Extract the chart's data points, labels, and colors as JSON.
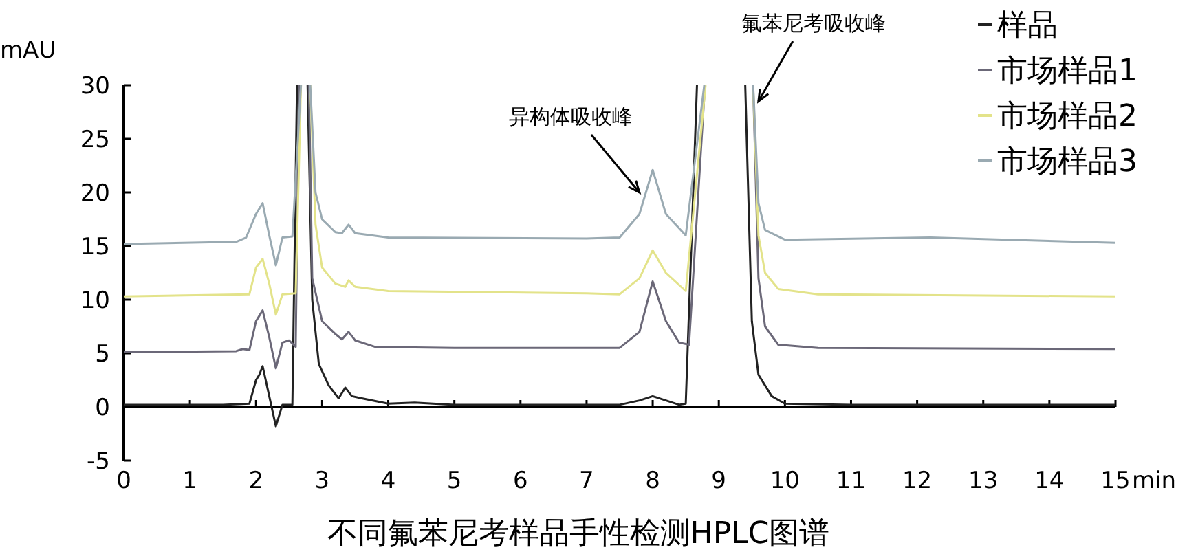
{
  "chart_data": {
    "type": "line",
    "title": "不同氟苯尼考样品手性检测HPLC图谱",
    "xlabel": "min",
    "ylabel": "mAU",
    "xlim": [
      0,
      15
    ],
    "ylim": [
      -5,
      30
    ],
    "xticks": [
      0,
      1,
      2,
      3,
      4,
      5,
      6,
      7,
      8,
      9,
      10,
      11,
      12,
      13,
      14,
      15
    ],
    "yticks": [
      -5,
      0,
      5,
      10,
      15,
      20,
      25,
      30
    ],
    "legend": "top right",
    "grid": false,
    "annotations": [
      {
        "text": "异构体吸收峰",
        "x": 7.8,
        "y": 20
      },
      {
        "text": "氟苯尼考吸收峰",
        "x": 9.6,
        "y": 28.5
      }
    ],
    "series": [
      {
        "name": "样品",
        "color": "#222222",
        "x": [
          0,
          1.5,
          1.9,
          2.0,
          2.05,
          2.1,
          2.2,
          2.3,
          2.4,
          2.55,
          2.62,
          2.7,
          2.78,
          2.85,
          2.95,
          3.1,
          3.25,
          3.35,
          3.45,
          3.6,
          4,
          4.4,
          5,
          7.5,
          7.8,
          8.0,
          8.2,
          8.4,
          8.5,
          8.67,
          9.0,
          9.4,
          9.5,
          9.6,
          9.8,
          10,
          11,
          15
        ],
        "values": [
          0.2,
          0.2,
          0.3,
          2.5,
          3.0,
          3.8,
          1,
          -1.8,
          0.2,
          0.2,
          30,
          null,
          30,
          10,
          4,
          2,
          0.8,
          1.8,
          1,
          0.8,
          0.3,
          0.4,
          0.2,
          0.2,
          0.6,
          1,
          0.6,
          0.2,
          0.3,
          30,
          null,
          30,
          8,
          3,
          1,
          0.3,
          0.2,
          0.2
        ]
      },
      {
        "name": "市场样品1",
        "color": "#6b6878",
        "x": [
          0,
          1.7,
          1.8,
          1.9,
          2.0,
          2.1,
          2.2,
          2.3,
          2.4,
          2.5,
          2.6,
          2.65,
          2.72,
          2.8,
          2.85,
          3.0,
          3.2,
          3.3,
          3.4,
          3.5,
          3.8,
          5,
          7.5,
          7.8,
          8.0,
          8.2,
          8.4,
          8.55,
          8.79,
          9.1,
          9.52,
          9.6,
          9.7,
          9.9,
          10.5,
          15
        ],
        "values": [
          5.1,
          5.2,
          5.4,
          5.3,
          8,
          9,
          6.5,
          3.6,
          6,
          6.2,
          5.6,
          30,
          null,
          30,
          12,
          8,
          6.8,
          6.3,
          7,
          6.2,
          5.6,
          5.5,
          5.5,
          7,
          11.7,
          8,
          6,
          5.8,
          30,
          null,
          30,
          12,
          7.5,
          5.8,
          5.5,
          5.4
        ]
      },
      {
        "name": "市场样品2",
        "color": "#e3e38a",
        "x": [
          0,
          1.9,
          2.0,
          2.1,
          2.2,
          2.3,
          2.4,
          2.6,
          2.68,
          2.75,
          2.82,
          2.9,
          3.0,
          3.2,
          3.35,
          3.4,
          3.5,
          4,
          7,
          7.5,
          7.8,
          8.0,
          8.2,
          8.5,
          8.8,
          9.1,
          9.52,
          9.6,
          9.7,
          9.9,
          10.5,
          15
        ],
        "values": [
          10.3,
          10.5,
          13,
          13.8,
          11.5,
          8.6,
          10.5,
          10.6,
          30,
          null,
          30,
          17,
          13,
          11.5,
          11.2,
          11.8,
          11.2,
          10.8,
          10.6,
          10.5,
          12,
          14.6,
          12.5,
          10.8,
          30,
          null,
          30,
          16,
          12.5,
          11,
          10.5,
          10.3
        ]
      },
      {
        "name": "市场样品3",
        "color": "#9aaab2",
        "x": [
          0,
          1.7,
          1.85,
          2.0,
          2.1,
          2.2,
          2.3,
          2.4,
          2.55,
          2.68,
          2.75,
          2.82,
          2.9,
          3.0,
          3.2,
          3.3,
          3.4,
          3.5,
          4,
          7,
          7.5,
          7.8,
          8.0,
          8.2,
          8.5,
          8.78,
          9.1,
          9.52,
          9.6,
          9.7,
          10,
          12.2,
          15
        ],
        "values": [
          15.2,
          15.4,
          15.8,
          18,
          19,
          16,
          13.2,
          15.8,
          15.9,
          30,
          null,
          30,
          20,
          17.5,
          16.3,
          16.2,
          17,
          16.2,
          15.8,
          15.7,
          15.8,
          18,
          22.1,
          18,
          16,
          30,
          null,
          30,
          19,
          16.5,
          15.6,
          15.8,
          15.3
        ]
      }
    ]
  }
}
